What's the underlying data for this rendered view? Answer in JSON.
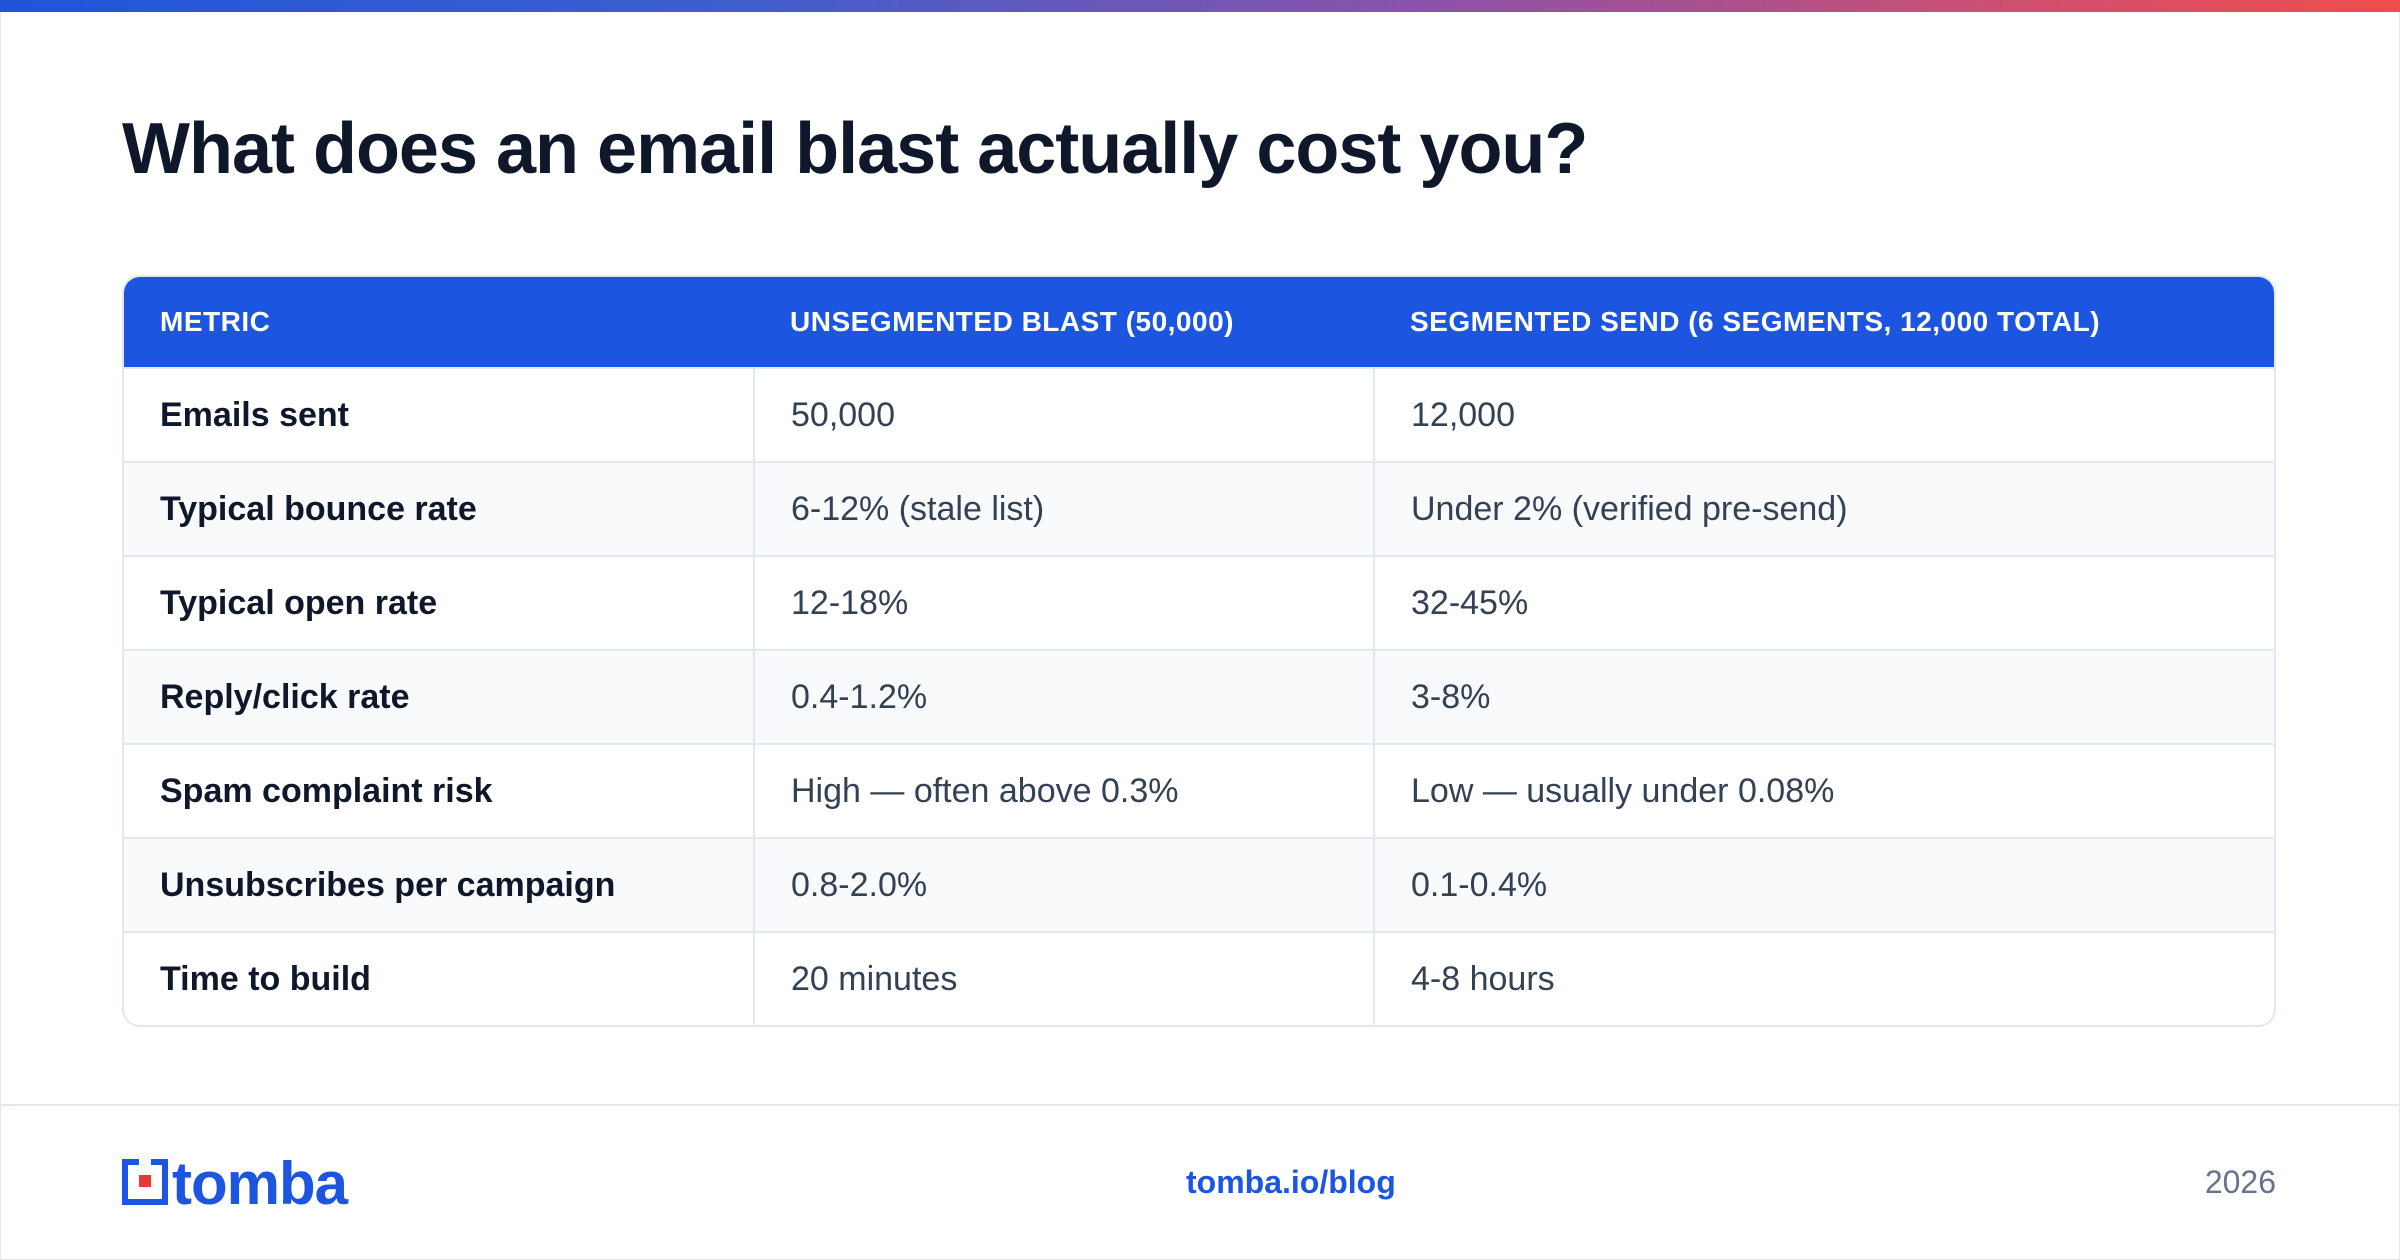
{
  "title": "What does an email blast actually cost you?",
  "table": {
    "headers": [
      "METRIC",
      "UNSEGMENTED BLAST (50,000)",
      "SEGMENTED SEND (6 SEGMENTS, 12,000 TOTAL)"
    ],
    "rows": [
      {
        "metric": "Emails sent",
        "unsegmented": "50,000",
        "segmented": "12,000"
      },
      {
        "metric": "Typical bounce rate",
        "unsegmented": "6-12% (stale list)",
        "segmented": "Under 2% (verified pre-send)"
      },
      {
        "metric": "Typical open rate",
        "unsegmented": "12-18%",
        "segmented": "32-45%"
      },
      {
        "metric": "Reply/click rate",
        "unsegmented": "0.4-1.2%",
        "segmented": "3-8%"
      },
      {
        "metric": "Spam complaint risk",
        "unsegmented": "High — often above 0.3%",
        "segmented": "Low — usually under 0.08%"
      },
      {
        "metric": "Unsubscribes per campaign",
        "unsegmented": "0.8-2.0%",
        "segmented": "0.1-0.4%"
      },
      {
        "metric": "Time to build",
        "unsegmented": "20 minutes",
        "segmented": "4-8 hours"
      }
    ]
  },
  "footer": {
    "logo_text": "tomba",
    "link": "tomba.io/blog",
    "year": "2026"
  },
  "colors": {
    "accent": "#1c55df",
    "title": "#0f172a",
    "body_text": "#334155",
    "border": "#e2e8f0",
    "alt_row": "#f8fafc",
    "gradient_start": "#1f55d9",
    "gradient_end": "#ef4d4d",
    "logo_red": "#e53935"
  },
  "icons": {
    "logo_mark": "tomba-logo-icon"
  }
}
